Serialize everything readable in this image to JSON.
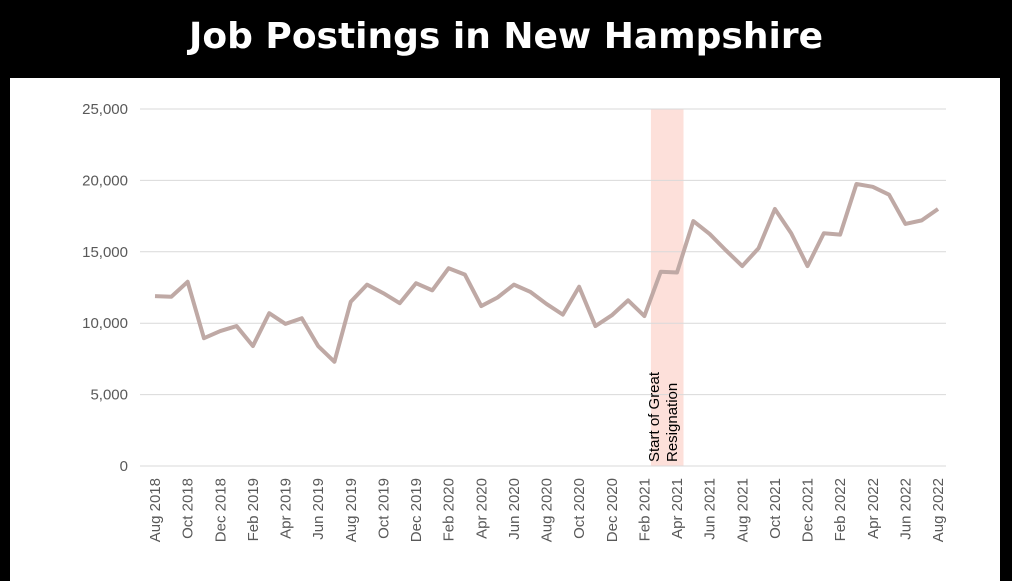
{
  "chart_data": {
    "type": "line",
    "title": "Job Postings in New Hampshire",
    "categories": [
      "Aug 2018",
      null,
      "Oct 2018",
      null,
      "Dec 2018",
      null,
      "Feb 2019",
      null,
      "Apr 2019",
      null,
      "Jun 2019",
      null,
      "Aug 2019",
      null,
      "Oct 2019",
      null,
      "Dec 2019",
      null,
      "Feb 2020",
      null,
      "Apr 2020",
      null,
      "Jun 2020",
      null,
      "Aug 2020",
      null,
      "Oct 2020",
      null,
      "Dec 2020",
      null,
      "Feb 2021",
      null,
      "Apr 2021",
      null,
      "Jun 2021",
      null,
      "Aug 2021",
      null,
      "Oct 2021",
      null,
      "Dec 2021",
      null,
      "Feb 2022",
      null,
      "Apr 2022",
      null,
      "Jun 2022",
      null,
      "Aug 2022"
    ],
    "series": [
      {
        "name": "Job Postings",
        "color": "#bfa9a5",
        "values": [
          11900,
          11850,
          12900,
          8950,
          9450,
          9800,
          8400,
          10700,
          9950,
          10350,
          8400,
          7300,
          11500,
          12700,
          12100,
          11400,
          12800,
          12300,
          13850,
          13400,
          11200,
          11800,
          12700,
          12200,
          11350,
          10600,
          12550,
          9800,
          10550,
          11600,
          10500,
          13600,
          13550,
          17150,
          16250,
          15100,
          14000,
          15250,
          18000,
          16300,
          14000,
          16300,
          16200,
          19750,
          19550,
          19000,
          16950,
          17200,
          18000
        ]
      }
    ],
    "ylim": [
      0,
      25000
    ],
    "yticks": [
      0,
      {
        "value": 5000,
        "label": "5,000"
      },
      {
        "value": 10000,
        "label": "10,000"
      },
      {
        "value": 15000,
        "label": "15,000"
      },
      {
        "value": 20000,
        "label": "20,000"
      },
      {
        "value": 25000,
        "label": "25,000"
      }
    ],
    "grid": true,
    "annotation": [
      "Start of Great",
      "Resignation"
    ],
    "highlight_color": "#fde0da"
  }
}
